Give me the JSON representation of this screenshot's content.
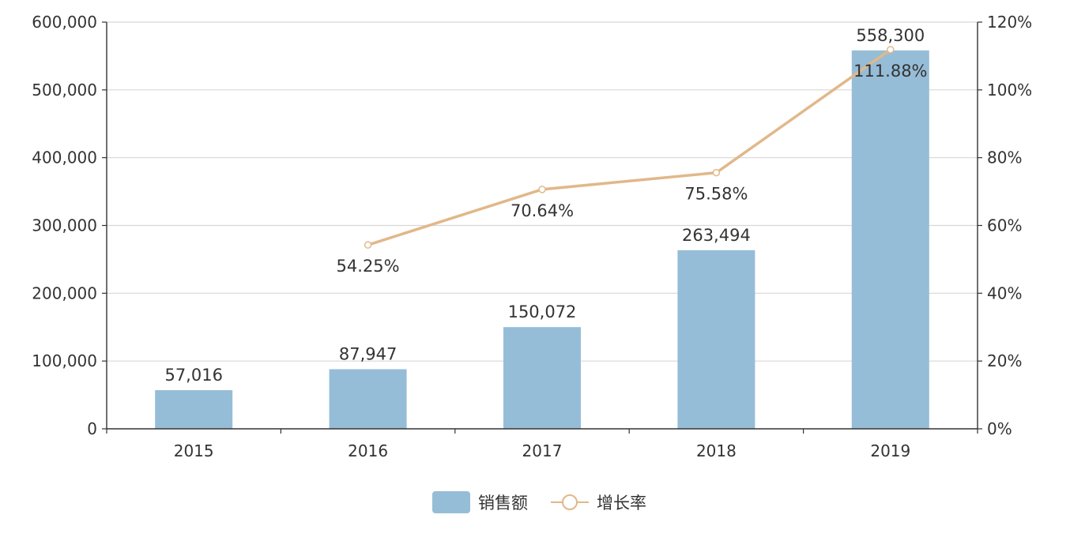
{
  "chart_data": {
    "type": "bar",
    "categories": [
      "2015",
      "2016",
      "2017",
      "2018",
      "2019"
    ],
    "series": [
      {
        "name": "销售额",
        "type": "bar",
        "axis": "left",
        "values": [
          57016,
          87947,
          150072,
          263494,
          558300
        ],
        "labels": [
          "57,016",
          "87,947",
          "150,072",
          "263,494",
          "558,300"
        ]
      },
      {
        "name": "增长率",
        "type": "line",
        "axis": "right",
        "values": [
          null,
          54.25,
          70.64,
          75.58,
          111.88
        ],
        "labels": [
          "",
          "54.25%",
          "70.64%",
          "75.58%",
          "111.88%"
        ]
      }
    ],
    "y_left": {
      "ylim": [
        0,
        600000
      ],
      "ticks": [
        "0",
        "100,000",
        "200,000",
        "300,000",
        "400,000",
        "500,000",
        "600,000"
      ]
    },
    "y_right": {
      "ylim": [
        0,
        120
      ],
      "ticks": [
        "0%",
        "20%",
        "40%",
        "60%",
        "80%",
        "100%",
        "120%"
      ]
    },
    "title": "",
    "xlabel": "",
    "ylabel": "",
    "grid": true,
    "legend_position": "bottom-center",
    "colors": {
      "bar": "#96bdd7",
      "line": "#e1b88a",
      "grid": "#d7d7d7",
      "axis": "#333333",
      "text": "#333333"
    }
  }
}
